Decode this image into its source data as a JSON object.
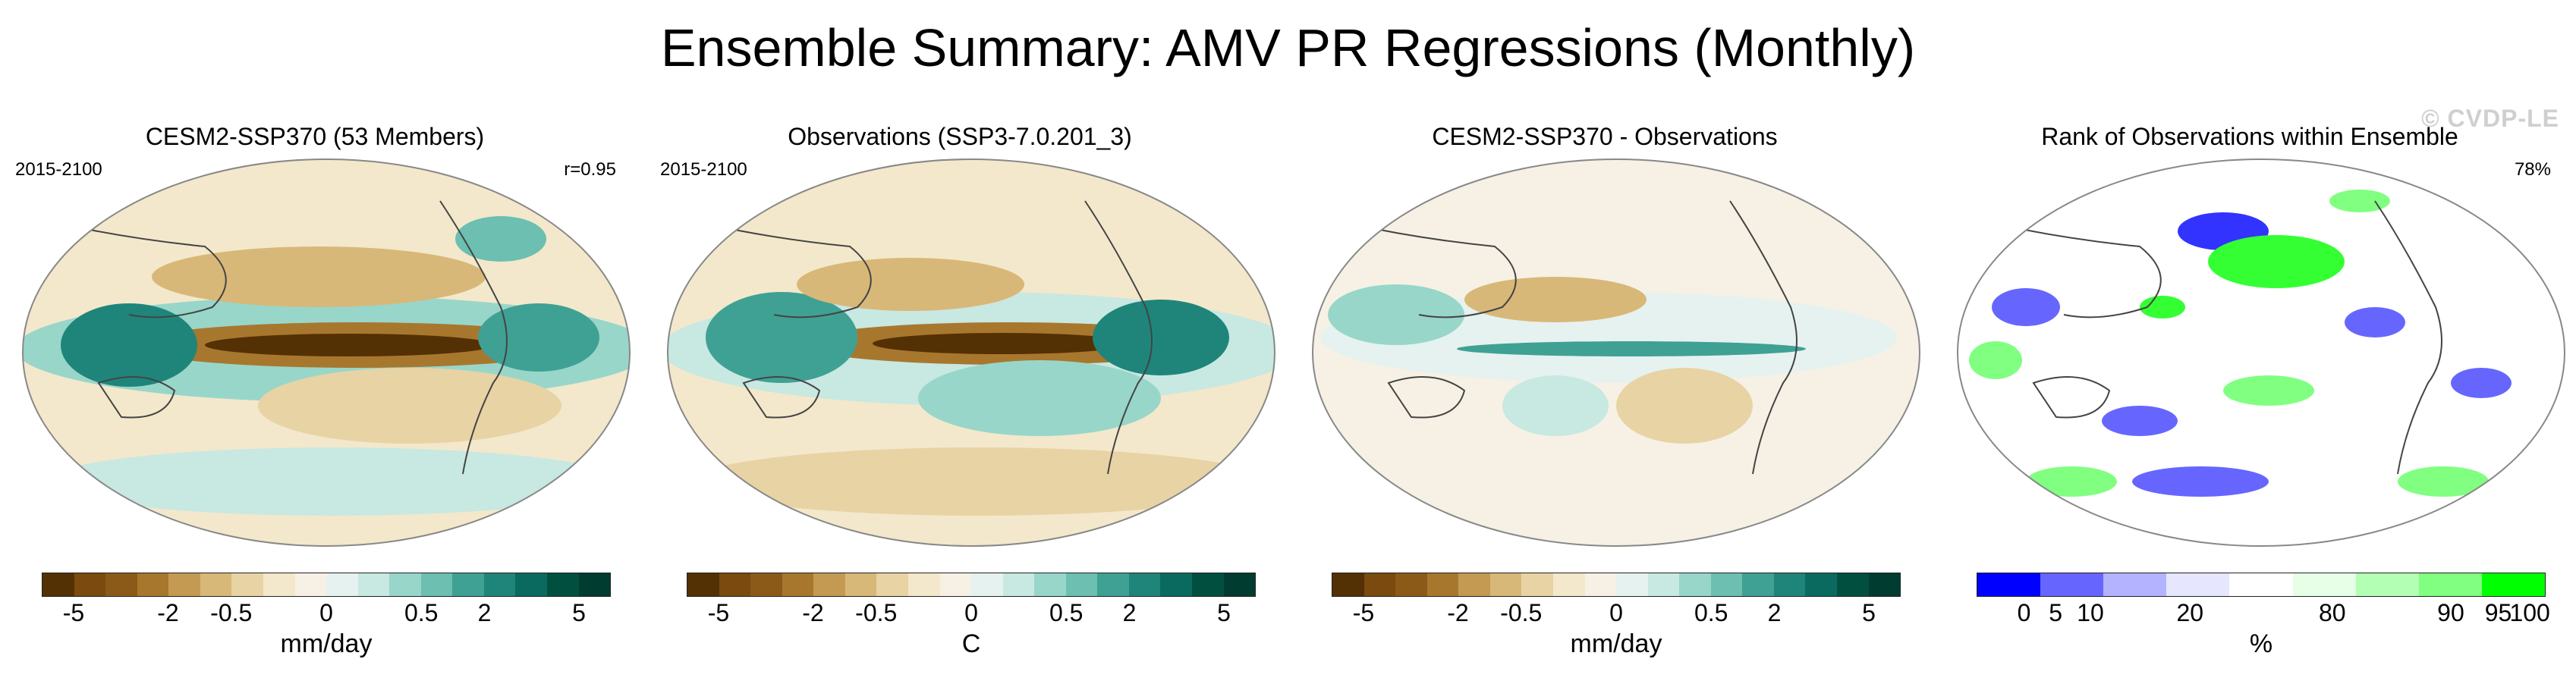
{
  "figure": {
    "title": "Ensemble Summary: AMV PR Regressions (Monthly)",
    "watermark": "© CVDP-LE"
  },
  "panels": [
    {
      "title": "CESM2-SSP370 (53 Members)",
      "left_label": "2015-2100",
      "right_label": "r=0.95",
      "unit": "mm/day",
      "ticks": [
        "-5",
        "-2",
        "-0.5",
        "0",
        "0.5",
        "2",
        "5"
      ]
    },
    {
      "title": "Observations (SSP3-7.0.201_3)",
      "left_label": "2015-2100",
      "right_label": "",
      "unit": "C",
      "ticks": [
        "-5",
        "-2",
        "-0.5",
        "0",
        "0.5",
        "2",
        "5"
      ]
    },
    {
      "title": "CESM2-SSP370 - Observations",
      "left_label": "",
      "right_label": "",
      "unit": "mm/day",
      "ticks": [
        "-5",
        "-2",
        "-0.5",
        "0",
        "0.5",
        "2",
        "5"
      ]
    },
    {
      "title": "Rank of Observations within Ensemble",
      "left_label": "",
      "right_label": "78%",
      "unit": "%",
      "ticks": [
        "0",
        "5",
        "10",
        "20",
        "80",
        "90",
        "95",
        "100"
      ]
    }
  ],
  "colors": {
    "brbg": [
      "#543005",
      "#7a4a0e",
      "#8c5a18",
      "#a8772e",
      "#c49a52",
      "#d8b878",
      "#e8d3a5",
      "#f3e8cb",
      "#f6f1e4",
      "#e6f2ef",
      "#c8e8e2",
      "#98d6ca",
      "#6cbfb1",
      "#3fa194",
      "#1f857a",
      "#0b6a5f",
      "#01503f",
      "#003c30"
    ],
    "rank": [
      "#0000ff",
      "#6666ff",
      "#b3b3ff",
      "#e6e6ff",
      "#ffffff",
      "#e6ffe6",
      "#b3ffb3",
      "#80ff80",
      "#00ff00"
    ],
    "land": "#444444"
  }
}
